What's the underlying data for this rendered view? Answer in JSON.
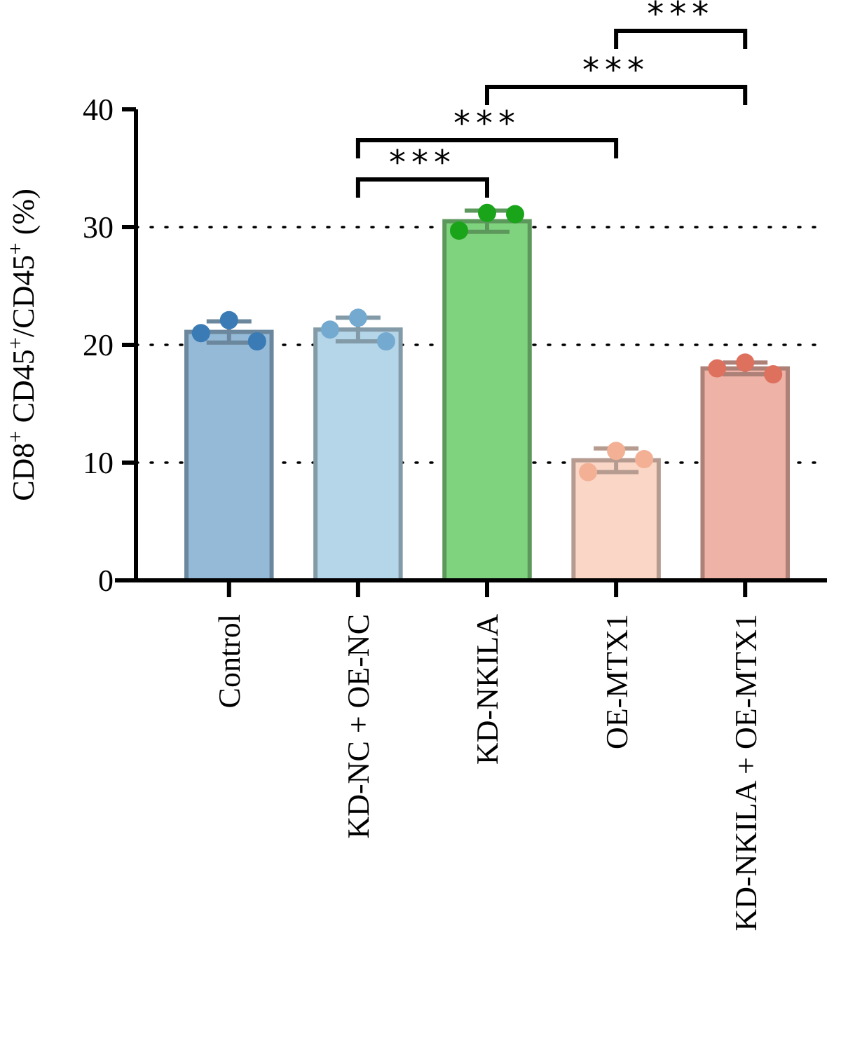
{
  "chart_data": {
    "type": "bar",
    "ylabel": "CD8$^{+}$ CD45$^{+}$/CD45$^{+}$ (%)",
    "categories": [
      "Control",
      "KD-NC + OE-NC",
      "KD-NKILA",
      "OE-MTX1",
      "KD-NKILA + OE-MTX1"
    ],
    "series": [
      {
        "type": "bar",
        "values": [
          21.1,
          21.3,
          30.5,
          10.2,
          18.0
        ],
        "errors": [
          0.9,
          1.0,
          0.9,
          1.0,
          0.5
        ],
        "colors": [
          "#94bad8",
          "#b5d5e8",
          "#7fd27e",
          "#fad6c6",
          "#eeb2a6"
        ]
      },
      {
        "type": "scatter",
        "x": [
          "Control",
          "Control",
          "Control",
          "KD-NC + OE-NC",
          "KD-NC + OE-NC",
          "KD-NC + OE-NC",
          "KD-NKILA",
          "KD-NKILA",
          "KD-NKILA",
          "OE-MTX1",
          "OE-MTX1",
          "OE-MTX1",
          "KD-NKILA + OE-MTX1",
          "KD-NKILA + OE-MTX1",
          "KD-NKILA + OE-MTX1"
        ],
        "values": [
          22.1,
          20.3,
          21.0,
          22.3,
          20.3,
          21.3,
          31.2,
          31.1,
          29.7,
          11.0,
          10.3,
          9.2,
          18.5,
          17.5,
          18.0
        ],
        "colors": [
          "#3a7bb5",
          "#3a7bb5",
          "#3a7bb5",
          "#74a9d0",
          "#74a9d0",
          "#74a9d0",
          "#1aa41a",
          "#1aa41a",
          "#1aa41a",
          "#f3b095",
          "#f3b095",
          "#f3b095",
          "#de705e",
          "#de705e",
          "#de705e"
        ]
      }
    ],
    "ylim": [
      0,
      40
    ],
    "yticks": [
      0,
      10,
      20,
      30,
      40
    ],
    "grid": "y",
    "line_style": "dotted",
    "annotations": [
      "***",
      "***",
      "***",
      "***"
    ]
  }
}
